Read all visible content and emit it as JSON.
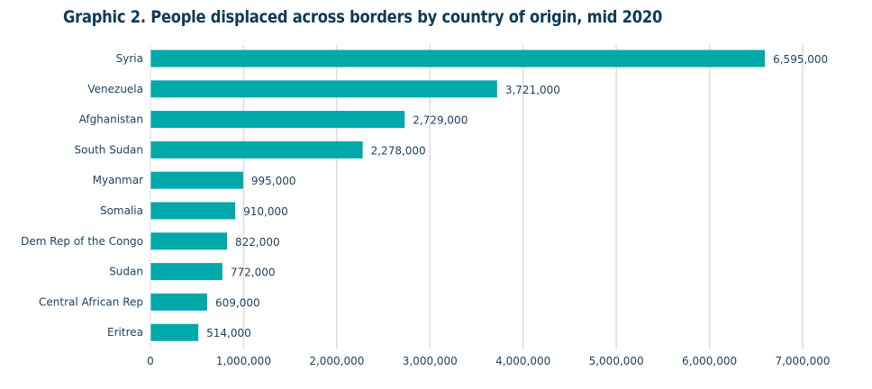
{
  "chart_data": {
    "type": "bar",
    "orientation": "horizontal",
    "title": "Graphic 2. People displaced across borders by country of origin, mid 2020",
    "categories": [
      "Syria",
      "Venezuela",
      "Afghanistan",
      "South Sudan",
      "Myanmar",
      "Somalia",
      "Dem Rep of the Congo",
      "Sudan",
      "Central African Rep",
      "Eritrea"
    ],
    "values": [
      6595000,
      3721000,
      2729000,
      2278000,
      995000,
      910000,
      822000,
      772000,
      609000,
      514000
    ],
    "data_labels": [
      "6,595,000",
      "3,721,000",
      "2,729,000",
      "2,278,000",
      "995,000",
      "910,000",
      "822,000",
      "772,000",
      "609,000",
      "514,000"
    ],
    "xlim": [
      0,
      7000000
    ],
    "xticks": [
      0,
      1000000,
      2000000,
      3000000,
      4000000,
      5000000,
      6000000,
      7000000
    ],
    "xtick_labels": [
      "0",
      "1,000,000",
      "2,000,000",
      "3,000,000",
      "4,000,000",
      "5,000,000",
      "6,000,000",
      "7,000,000"
    ],
    "xlabel": "",
    "ylabel": "",
    "grid": "vertical",
    "colors": {
      "bar": "#00a9a9",
      "text": "#1d3f5c",
      "grid": "#e2d9de",
      "title": "#0d3b56"
    }
  }
}
